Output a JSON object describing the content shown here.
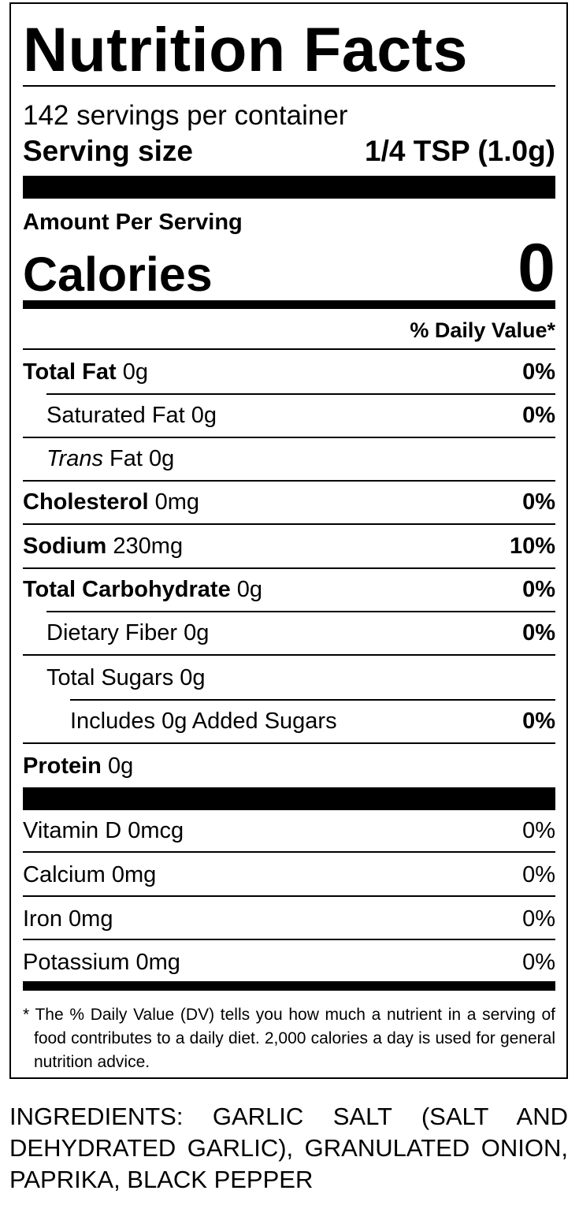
{
  "label": {
    "title": "Nutrition Facts",
    "servings_per_container": "142 servings per container",
    "serving_size_label": "Serving size",
    "serving_size_value": "1/4 TSP (1.0g)",
    "amount_per_serving": "Amount Per Serving",
    "calories_label": "Calories",
    "calories_value": "0",
    "daily_value_header": "% Daily Value*",
    "nutrients": [
      {
        "name": "Total Fat",
        "amount": "0g",
        "dv": "0%"
      },
      {
        "name": "Saturated Fat",
        "amount": "0g",
        "dv": "0%"
      },
      {
        "prefix": "Trans",
        "name": "Fat",
        "amount": "0g"
      },
      {
        "name": "Cholesterol",
        "amount": "0mg",
        "dv": "0%"
      },
      {
        "name": "Sodium",
        "amount": "230mg",
        "dv": "10%"
      },
      {
        "name": "Total Carbohydrate",
        "amount": "0g",
        "dv": "0%"
      },
      {
        "name": "Dietary Fiber",
        "amount": "0g",
        "dv": "0%"
      },
      {
        "name": "Total Sugars",
        "amount": "0g"
      },
      {
        "name": "Includes 0g Added Sugars",
        "dv": "0%"
      },
      {
        "name": "Protein",
        "amount": "0g"
      }
    ],
    "vitamins": [
      {
        "name": "Vitamin D",
        "amount": "0mcg",
        "dv": "0%"
      },
      {
        "name": "Calcium",
        "amount": "0mg",
        "dv": "0%"
      },
      {
        "name": "Iron",
        "amount": "0mg",
        "dv": "0%"
      },
      {
        "name": "Potassium",
        "amount": "0mg",
        "dv": "0%"
      }
    ],
    "footnote": "* The % Daily Value (DV) tells you how much a nutrient in a serving of food contributes to a daily diet. 2,000 calories a day is used for general nutrition advice."
  },
  "ingredients": "INGREDIENTS: GARLIC SALT (SALT AND DEHYDRATED GARLIC), GRANULATED ONION, PAPRIKA, BLACK PEPPER"
}
